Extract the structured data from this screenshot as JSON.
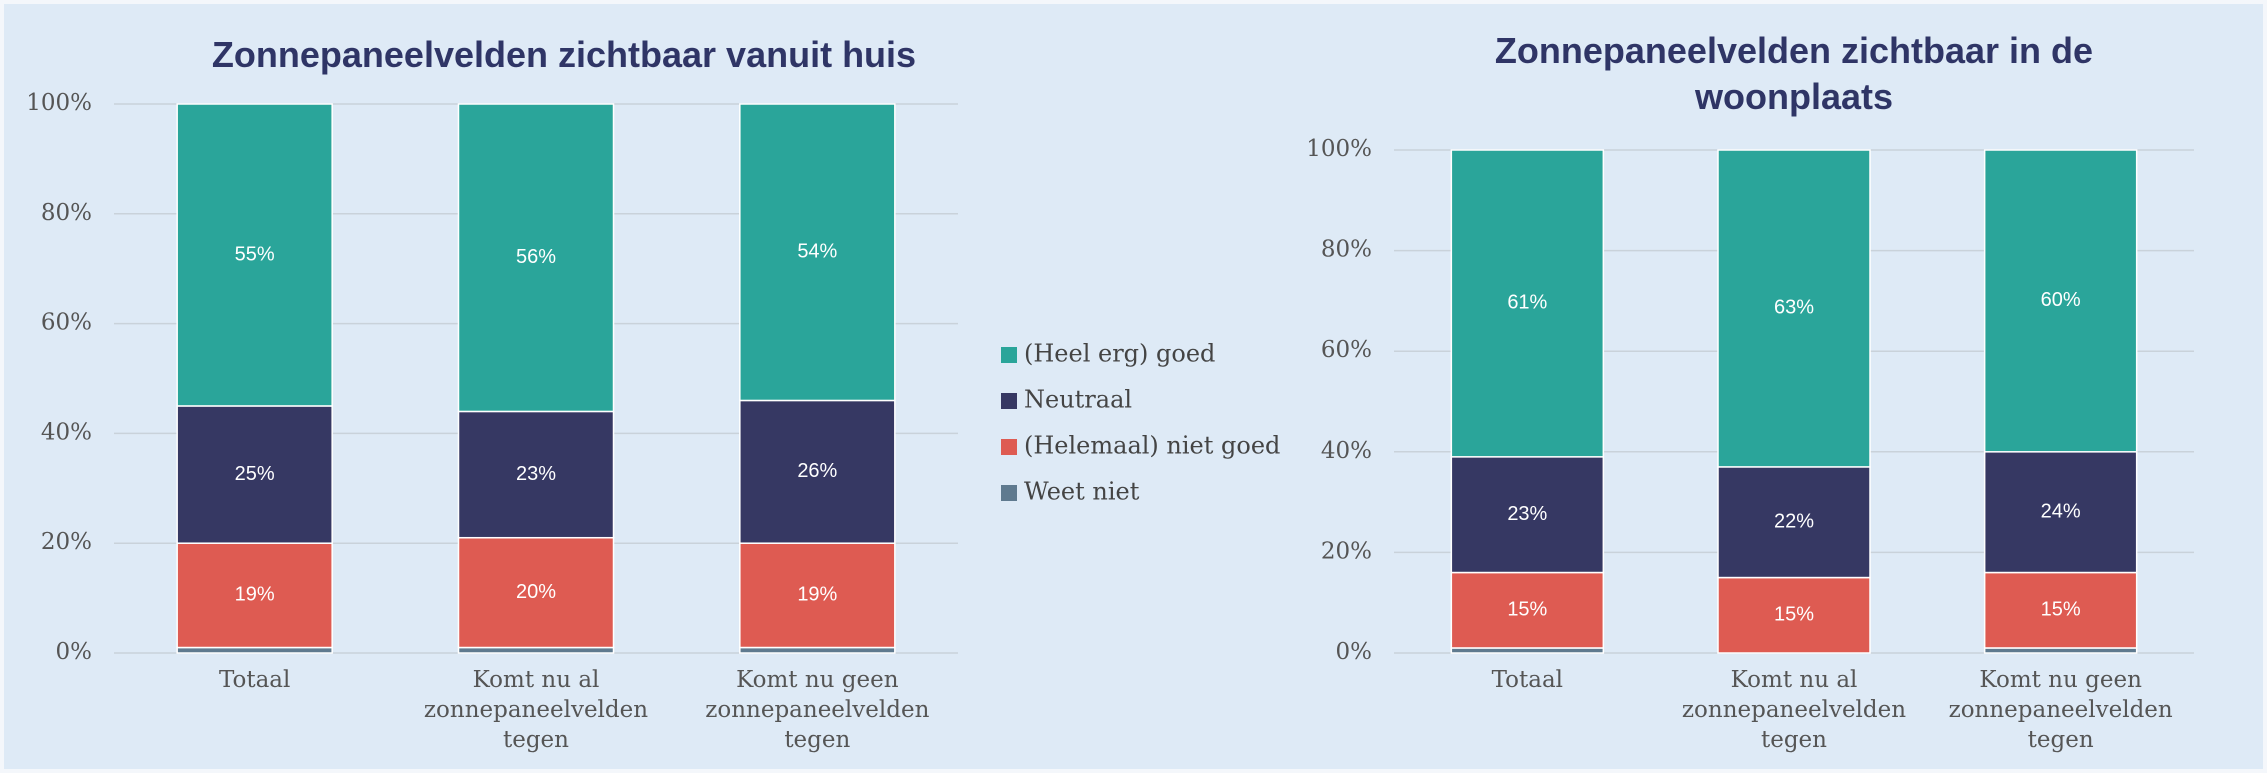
{
  "chart_data": [
    {
      "type": "bar",
      "stacked": true,
      "title": "Zonnepaneelvelden zichtbaar vanuit huis",
      "categories": [
        "Totaal",
        "Komt nu al zonnepaneelvelden tegen",
        "Komt nu geen zonnepaneelvelden tegen"
      ],
      "series": [
        {
          "name": "Weet niet",
          "color": "#5f7a8f",
          "values": [
            1,
            1,
            1
          ]
        },
        {
          "name": "(Helemaal) niet goed",
          "color": "#de5b52",
          "values": [
            19,
            20,
            19
          ],
          "value_labels": [
            "19%",
            "20%",
            "19%"
          ]
        },
        {
          "name": "Neutraal",
          "color": "#363863",
          "values": [
            25,
            23,
            26
          ],
          "value_labels": [
            "25%",
            "23%",
            "26%"
          ]
        },
        {
          "name": "(Heel erg) goed",
          "color": "#2aa59a",
          "values": [
            55,
            56,
            54
          ],
          "value_labels": [
            "55%",
            "56%",
            "54%"
          ]
        }
      ],
      "ylim": [
        0,
        100
      ],
      "yticks": [
        {
          "value": 0,
          "label": "0%"
        },
        {
          "value": 20,
          "label": "20%"
        },
        {
          "value": 40,
          "label": "40%"
        },
        {
          "value": 60,
          "label": "60%"
        },
        {
          "value": 80,
          "label": "80%"
        },
        {
          "value": 100,
          "label": "100%"
        }
      ],
      "grid": true,
      "legend": "right"
    },
    {
      "type": "bar",
      "stacked": true,
      "title": "Zonnepaneelvelden zichtbaar in de woonplaats",
      "categories": [
        "Totaal",
        "Komt nu al zonnepaneelvelden tegen",
        "Komt nu geen zonnepaneelvelden tegen"
      ],
      "series": [
        {
          "color": "#5f7a8f",
          "values": [
            1,
            0,
            1
          ]
        },
        {
          "color": "#de5b52",
          "values": [
            15,
            15,
            15
          ],
          "value_labels": [
            "15%",
            "15%",
            "15%"
          ]
        },
        {
          "color": "#363863",
          "values": [
            23,
            22,
            24
          ],
          "value_labels": [
            "23%",
            "22%",
            "24%"
          ]
        },
        {
          "color": "#2aa59a",
          "values": [
            61,
            63,
            60
          ],
          "value_labels": [
            "61%",
            "63%",
            "60%"
          ]
        }
      ],
      "ylim": [
        0,
        100
      ],
      "yticks": [
        {
          "value": 0,
          "label": "0%"
        },
        {
          "value": 20,
          "label": "20%"
        },
        {
          "value": 40,
          "label": "40%"
        },
        {
          "value": 60,
          "label": "60%"
        },
        {
          "value": 80,
          "label": "80%"
        },
        {
          "value": 100,
          "label": "100%"
        }
      ],
      "grid": true
    }
  ]
}
